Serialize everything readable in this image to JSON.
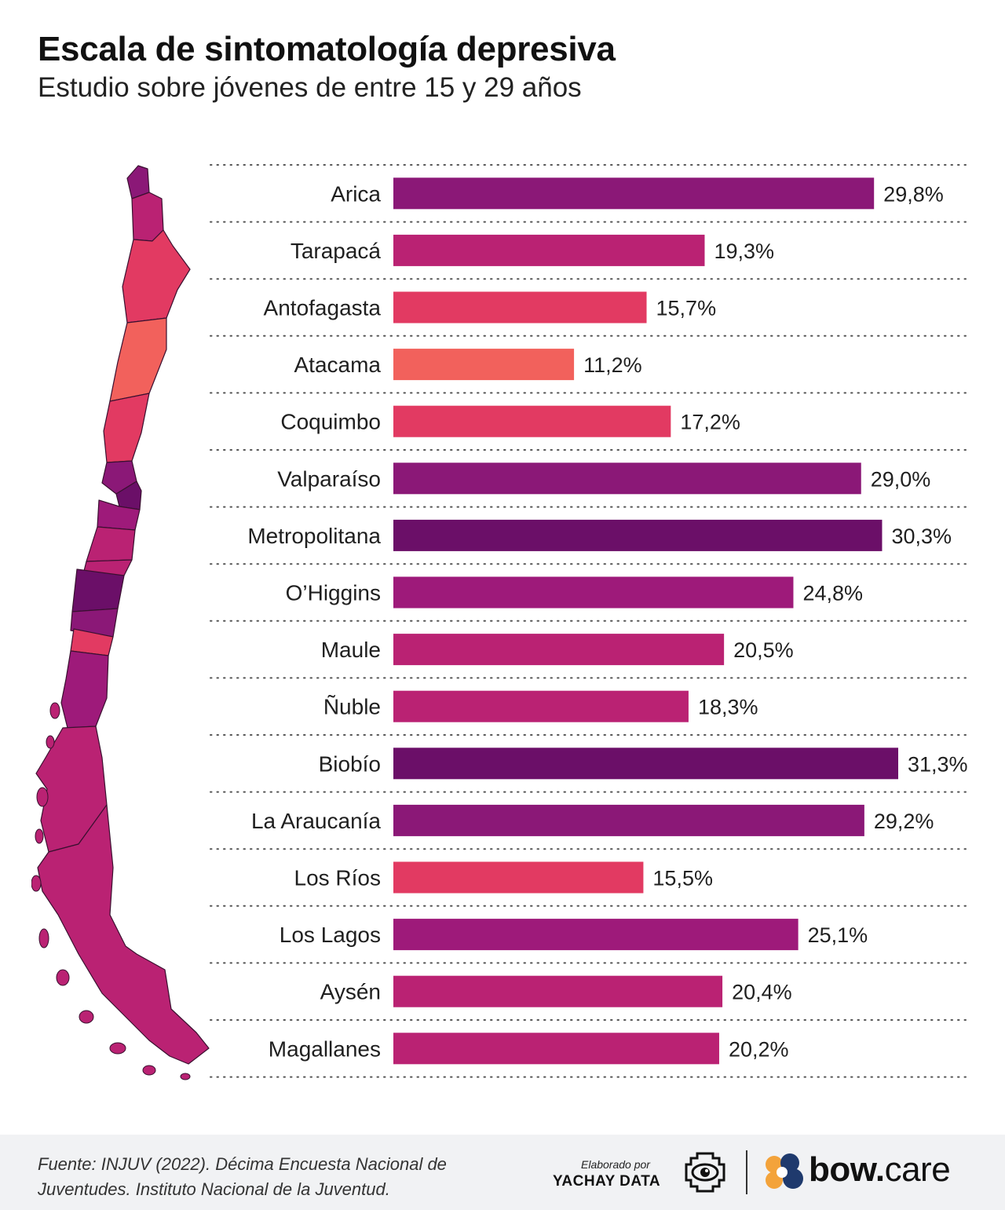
{
  "header": {
    "title": "Escala de sintomatología depresiva",
    "subtitle": "Estudio sobre jóvenes de entre 15 y 29 años"
  },
  "colors": {
    "darkest_purple": "#6b0f68",
    "purple": "#8b1877",
    "magenta_purple": "#9e1a7a",
    "magenta": "#ba2273",
    "pink_red": "#e23a62",
    "coral": "#f2615c",
    "grid_dots": "#555555"
  },
  "chart_data": {
    "type": "bar",
    "orientation": "horizontal",
    "title": "Escala de sintomatología depresiva",
    "subtitle": "Estudio sobre jóvenes de entre 15 y 29 años",
    "categories": [
      "Arica",
      "Tarapacá",
      "Antofagasta",
      "Atacama",
      "Coquimbo",
      "Valparaíso",
      "Metropolitana",
      "O’Higgins",
      "Maule",
      "Ñuble",
      "Biobío",
      "La Araucanía",
      "Los Ríos",
      "Los Lagos",
      "Aysén",
      "Magallanes"
    ],
    "values": [
      29.8,
      19.3,
      15.7,
      11.2,
      17.2,
      29.0,
      30.3,
      24.8,
      20.5,
      18.3,
      31.3,
      29.2,
      15.5,
      25.1,
      20.4,
      20.2
    ],
    "value_labels": [
      "29,8%",
      "19,3%",
      "15,7%",
      "11,2%",
      "17,2%",
      "29,0%",
      "30,3%",
      "24,8%",
      "20,5%",
      "18,3%",
      "31,3%",
      "29,2%",
      "15,5%",
      "25,1%",
      "20,4%",
      "20,2%"
    ],
    "colors": [
      "#8b1877",
      "#ba2273",
      "#e23a62",
      "#f2615c",
      "#e23a62",
      "#8b1877",
      "#6b0f68",
      "#9e1a7a",
      "#ba2273",
      "#ba2273",
      "#6b0f68",
      "#8b1877",
      "#e23a62",
      "#9e1a7a",
      "#ba2273",
      "#ba2273"
    ],
    "unit": "%",
    "xlim": [
      0,
      31.3
    ],
    "grid": "dotted row separators",
    "legend": "none"
  },
  "footer": {
    "source": "Fuente:  INJUV (2022). Décima Encuesta Nacional de Juventudes. Instituto Nacional de la Juventud.",
    "credit_small": "Elaborado por",
    "credit_brand": "YACHAY DATA",
    "partner_bold": "bow.",
    "partner_light": "care",
    "icons": [
      "yachay-eye-logo",
      "bow-care-logo"
    ]
  }
}
